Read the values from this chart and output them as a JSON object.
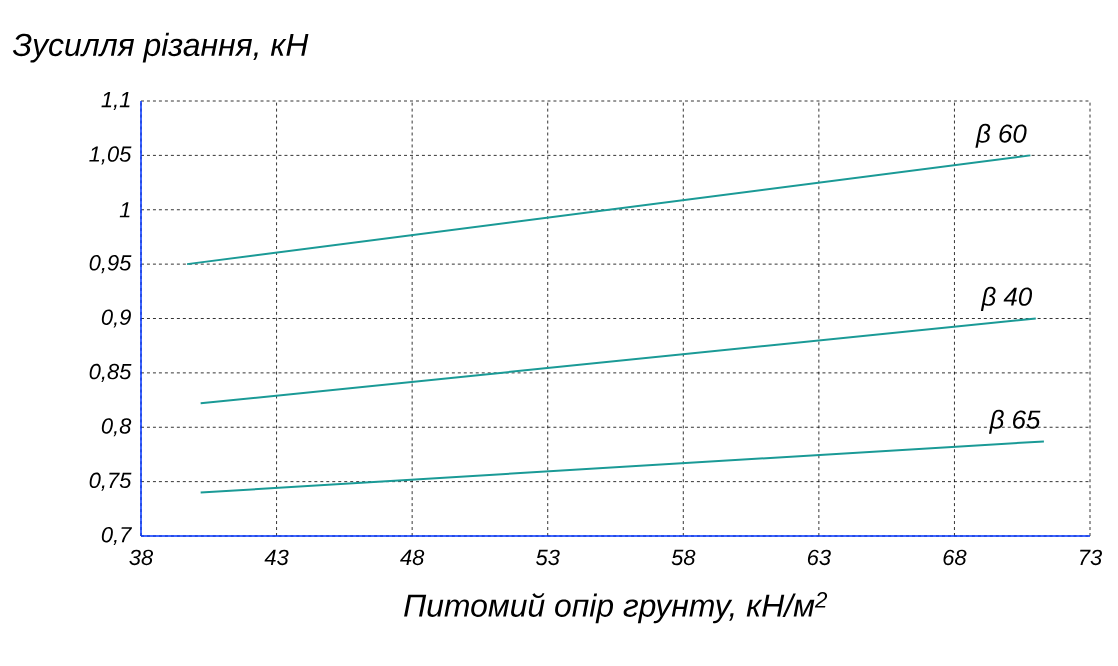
{
  "chart_data": {
    "type": "line",
    "ylabel": "Зусилля різання, кН",
    "xlabel": "Питомий опір грунту, кН/м$^{2}$",
    "xlim": [
      38,
      73
    ],
    "xticks": [
      38,
      43,
      48,
      53,
      58,
      63,
      68,
      73
    ],
    "ylim": [
      0.7,
      1.1
    ],
    "yticks": [
      {
        "value": 0.7,
        "label": "0,7"
      },
      {
        "value": 0.75,
        "label": "0,75"
      },
      {
        "value": 0.8,
        "label": "0,8"
      },
      {
        "value": 0.85,
        "label": "0,85"
      },
      {
        "value": 0.9,
        "label": "0,9"
      },
      {
        "value": 0.95,
        "label": "0,95"
      },
      {
        "value": 1.0,
        "label": "1"
      },
      {
        "value": 1.05,
        "label": "1,05"
      },
      {
        "value": 1.1,
        "label": "1,1"
      }
    ],
    "grid": true,
    "legend": false,
    "marker": "none",
    "line_style": "solid",
    "series": [
      {
        "name": "β 60",
        "color": "#1a9a96",
        "x": [
          39.7,
          70.8
        ],
        "values": [
          0.95,
          1.05
        ]
      },
      {
        "name": "β 40",
        "color": "#1a9a96",
        "x": [
          40.2,
          71.0
        ],
        "values": [
          0.822,
          0.9
        ]
      },
      {
        "name": "β 65",
        "color": "#1a9a96",
        "x": [
          40.2,
          71.3
        ],
        "values": [
          0.74,
          0.787
        ]
      }
    ]
  }
}
